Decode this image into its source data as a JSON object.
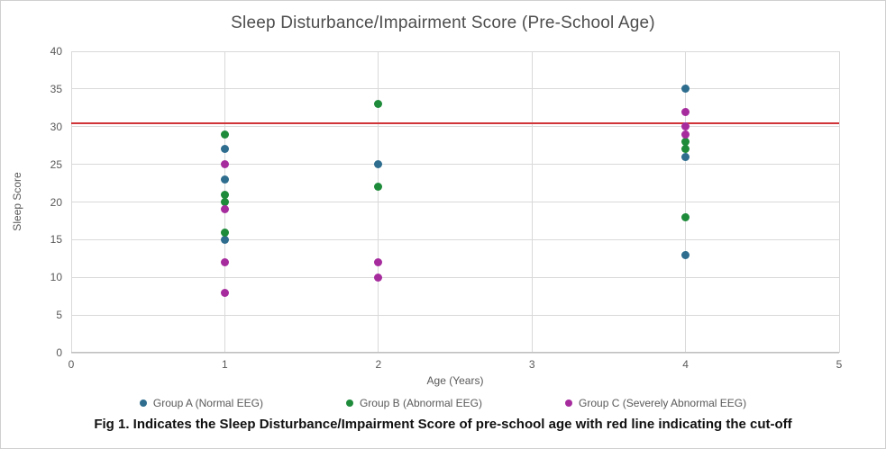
{
  "caption": "Fig 1. Indicates the Sleep Disturbance/Impairment Score of pre-school age with red line indicating the cut-off",
  "chart_data": {
    "type": "scatter",
    "title": "Sleep Disturbance/Impairment Score (Pre-School Age)",
    "xlabel": "Age (Years)",
    "ylabel": "Sleep Score",
    "xlim": [
      0,
      5
    ],
    "ylim": [
      0,
      40
    ],
    "x_ticks": [
      0,
      1,
      2,
      3,
      4,
      5
    ],
    "y_ticks": [
      0,
      5,
      10,
      15,
      20,
      25,
      30,
      35,
      40
    ],
    "grid": true,
    "legend_position": "bottom",
    "cutoff_line": {
      "y": 30.5,
      "color": "#d13438"
    },
    "series": [
      {
        "name": "Group A (Normal EEG)",
        "color": "#2e6d8e",
        "points": [
          [
            1,
            27
          ],
          [
            1,
            23
          ],
          [
            1,
            15
          ],
          [
            2,
            25
          ],
          [
            4,
            35
          ],
          [
            4,
            26
          ],
          [
            4,
            13
          ]
        ]
      },
      {
        "name": "Group B (Abnormal EEG)",
        "color": "#1e8b3b",
        "points": [
          [
            1,
            29
          ],
          [
            1,
            21
          ],
          [
            1,
            20
          ],
          [
            1,
            16
          ],
          [
            2,
            33
          ],
          [
            2,
            22
          ],
          [
            4,
            28
          ],
          [
            4,
            27
          ],
          [
            4,
            18
          ]
        ]
      },
      {
        "name": "Group C (Severely Abnormal EEG)",
        "color": "#a62c9e",
        "points": [
          [
            1,
            25
          ],
          [
            1,
            19
          ],
          [
            1,
            12
          ],
          [
            1,
            8
          ],
          [
            2,
            12
          ],
          [
            2,
            10
          ],
          [
            4,
            32
          ],
          [
            4,
            30
          ],
          [
            4,
            29
          ]
        ]
      }
    ]
  }
}
